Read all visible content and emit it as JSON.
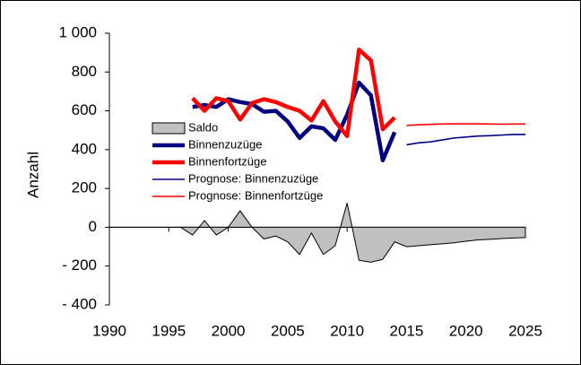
{
  "chart_data": {
    "type": "line",
    "y_label": "Anzahl",
    "x": [
      1990,
      1991,
      1992,
      1993,
      1994,
      1995,
      1996,
      1997,
      1998,
      1999,
      2000,
      2001,
      2002,
      2003,
      2004,
      2005,
      2006,
      2007,
      2008,
      2009,
      2010,
      2011,
      2012,
      2013,
      2014,
      2015,
      2016,
      2017,
      2018,
      2019,
      2020,
      2021,
      2022,
      2023,
      2024,
      2025
    ],
    "xlim": [
      1990,
      2025
    ],
    "xticks": [
      1990,
      1995,
      2000,
      2005,
      2010,
      2015,
      2020,
      2025
    ],
    "ylim": [
      -400,
      1000
    ],
    "yticks": [
      {
        "value": -400,
        "label": "- 400"
      },
      {
        "value": -200,
        "label": "- 200"
      },
      0,
      200,
      400,
      600,
      800,
      {
        "value": 1000,
        "label": "1 000"
      }
    ],
    "legend": "center-left",
    "series": [
      {
        "name": "Saldo",
        "kind": "area",
        "color": "#c0c0c0",
        "line_width": 1,
        "values": [
          0,
          0,
          0,
          0,
          0,
          0,
          0,
          -40,
          35,
          -40,
          0,
          85,
          0,
          -60,
          -45,
          -75,
          -140,
          -30,
          -140,
          -95,
          125,
          -170,
          -180,
          -165,
          -75,
          -100,
          -95,
          -90,
          -85,
          -80,
          -72,
          -65,
          -62,
          -58,
          -55,
          -53
        ]
      },
      {
        "name": "Binnenzuzüge",
        "kind": "line",
        "color": "#000080",
        "line_width": 4.5,
        "values": [
          null,
          null,
          null,
          null,
          null,
          null,
          null,
          620,
          630,
          620,
          660,
          645,
          635,
          595,
          600,
          545,
          460,
          520,
          510,
          450,
          580,
          745,
          680,
          345,
          490,
          null,
          null,
          null,
          null,
          null,
          null,
          null,
          null,
          null,
          null,
          null
        ]
      },
      {
        "name": "Binnenfortzüge",
        "kind": "line",
        "color": "#ff0000",
        "line_width": 4.5,
        "values": [
          null,
          null,
          null,
          null,
          null,
          null,
          null,
          665,
          600,
          665,
          650,
          555,
          640,
          660,
          645,
          620,
          600,
          550,
          650,
          545,
          470,
          915,
          860,
          505,
          565,
          null,
          null,
          null,
          null,
          null,
          null,
          null,
          null,
          null,
          null,
          null
        ]
      },
      {
        "name": "Prognose: Binnenzuzüge",
        "kind": "line",
        "color": "#000080",
        "line_width": 1.6,
        "values": [
          null,
          null,
          null,
          null,
          null,
          null,
          null,
          null,
          null,
          null,
          null,
          null,
          null,
          null,
          null,
          null,
          null,
          null,
          null,
          null,
          null,
          null,
          null,
          null,
          null,
          425,
          435,
          440,
          450,
          460,
          465,
          470,
          472,
          475,
          478,
          478
        ]
      },
      {
        "name": "Prognose: Binnenfortzüge",
        "kind": "line",
        "color": "#ff0000",
        "line_width": 1.6,
        "values": [
          null,
          null,
          null,
          null,
          null,
          null,
          null,
          null,
          null,
          null,
          null,
          null,
          null,
          null,
          null,
          null,
          null,
          null,
          null,
          null,
          null,
          null,
          null,
          null,
          null,
          525,
          528,
          530,
          532,
          533,
          533,
          533,
          532,
          531,
          532,
          532
        ]
      }
    ]
  }
}
